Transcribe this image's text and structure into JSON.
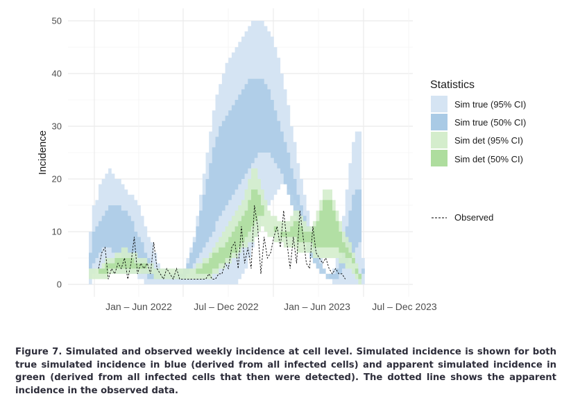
{
  "chart_data": {
    "type": "area",
    "xlabel": "",
    "ylabel": "Incidence",
    "ylim": [
      0,
      50
    ],
    "y_ticks": [
      0,
      10,
      20,
      30,
      40,
      50
    ],
    "x_tick_labels": [
      "Jan – Jun 2022",
      "Jul – Dec 2022",
      "Jan – Jun 2023",
      "Jul – Dec 2023"
    ],
    "x_unit": "week index from first plotted week (week 0 = mid Dec 2021)",
    "grid": true,
    "legend_position": "right",
    "legend_title": "Statistics",
    "colors": {
      "sim_true_95": "#d5e4f3",
      "sim_true_50": "#a9cae5",
      "sim_det_95": "#d4edcc",
      "sim_det_50": "#aedd9e",
      "observed": "#000000",
      "grid": "#ebebeb"
    },
    "series": [
      {
        "name": "Sim true (95% CI)",
        "lower": [
          0,
          2,
          3,
          3,
          4,
          3,
          3,
          2,
          2,
          2,
          2,
          2,
          2,
          2,
          2,
          1,
          1,
          0,
          0,
          0,
          0,
          0,
          0,
          0,
          0,
          0,
          0,
          0,
          0,
          0,
          0,
          0,
          0,
          0,
          0,
          0,
          0,
          0,
          0,
          0,
          0,
          0,
          0,
          0,
          0,
          0,
          1,
          2,
          3,
          5,
          7,
          9,
          11,
          13,
          14,
          15,
          16,
          17,
          18,
          19,
          19,
          18,
          17,
          16,
          15,
          14,
          12,
          10,
          8,
          6,
          5,
          4,
          3,
          2,
          1,
          0,
          0,
          0,
          0,
          0,
          0,
          0,
          0,
          0,
          0,
          0,
          0,
          0,
          0,
          0,
          0,
          0,
          0,
          0,
          0,
          0,
          0,
          0,
          0
        ],
        "upper": [
          10,
          15,
          16,
          19,
          20,
          21,
          22,
          21,
          20,
          20,
          19,
          18,
          17,
          17,
          16,
          15,
          13,
          11,
          9,
          8,
          6,
          4,
          3,
          3,
          2,
          2,
          2,
          3,
          3,
          3,
          5,
          7,
          9,
          13,
          17,
          21,
          25,
          29,
          33,
          36,
          38,
          40,
          42,
          43,
          44,
          45,
          46,
          47,
          48,
          49,
          50,
          50,
          50,
          50,
          49,
          48,
          47,
          45,
          43,
          40,
          37,
          34,
          30,
          27,
          23,
          20,
          17,
          14,
          11,
          9,
          7,
          5,
          3,
          2,
          2,
          3,
          5,
          9,
          13,
          18,
          23,
          27,
          29,
          29,
          5,
          0,
          0,
          0,
          0,
          0,
          0,
          0,
          0,
          0,
          0,
          0,
          0,
          0,
          0
        ]
      },
      {
        "name": "Sim true (50% CI)",
        "lower": [
          3,
          4,
          5,
          6,
          7,
          7,
          7,
          6,
          6,
          6,
          5,
          5,
          4,
          4,
          3,
          3,
          2,
          2,
          1,
          1,
          1,
          1,
          1,
          1,
          1,
          1,
          1,
          1,
          1,
          1,
          2,
          3,
          4,
          5,
          6,
          7,
          8,
          9,
          10,
          12,
          13,
          14,
          15,
          16,
          17,
          18,
          19,
          20,
          21,
          22,
          23,
          24,
          25,
          25,
          25,
          25,
          24,
          23,
          22,
          21,
          19,
          17,
          15,
          13,
          11,
          9,
          8,
          6,
          5,
          4,
          3,
          2,
          2,
          1,
          1,
          1,
          1,
          2,
          3,
          4,
          5,
          6,
          7,
          8,
          2,
          0,
          0,
          0,
          0,
          0,
          0,
          0,
          0,
          0,
          0,
          0,
          0,
          0,
          0
        ],
        "upper": [
          6,
          10,
          11,
          12,
          13,
          14,
          15,
          15,
          15,
          15,
          14,
          14,
          13,
          12,
          10,
          9,
          8,
          6,
          5,
          4,
          3,
          3,
          2,
          2,
          2,
          2,
          2,
          2,
          2,
          3,
          4,
          6,
          8,
          11,
          14,
          17,
          20,
          23,
          26,
          28,
          30,
          31,
          32,
          33,
          34,
          35,
          36,
          37,
          38,
          39,
          39,
          39,
          39,
          39,
          38,
          37,
          35,
          33,
          31,
          29,
          27,
          25,
          22,
          20,
          17,
          15,
          13,
          11,
          9,
          7,
          6,
          4,
          3,
          2,
          2,
          2,
          3,
          5,
          8,
          11,
          14,
          17,
          18,
          18,
          3,
          0,
          0,
          0,
          0,
          0,
          0,
          0,
          0,
          0,
          0,
          0,
          0,
          0,
          0
        ]
      },
      {
        "name": "Sim det (95% CI)",
        "lower": [
          1,
          1,
          1,
          1,
          1,
          1,
          2,
          2,
          2,
          2,
          2,
          2,
          2,
          2,
          2,
          2,
          2,
          2,
          2,
          2,
          1,
          1,
          1,
          1,
          1,
          1,
          1,
          1,
          1,
          1,
          1,
          1,
          1,
          1,
          1,
          1,
          1,
          1,
          2,
          2,
          3,
          3,
          4,
          4,
          5,
          5,
          6,
          7,
          7,
          8,
          8,
          9,
          10,
          11,
          10,
          9,
          9,
          8,
          8,
          8,
          7,
          7,
          7,
          7,
          6,
          6,
          6,
          6,
          6,
          5,
          5,
          5,
          5,
          5,
          5,
          5,
          5,
          4,
          4,
          3,
          3,
          2,
          1,
          0,
          0,
          0,
          0,
          0,
          0,
          0,
          0,
          0,
          0,
          0,
          0,
          0,
          0,
          0,
          0
        ],
        "upper": [
          3,
          3,
          3,
          3,
          4,
          5,
          5,
          5,
          6,
          6,
          7,
          7,
          6,
          6,
          6,
          5,
          5,
          5,
          4,
          4,
          3,
          3,
          3,
          3,
          3,
          3,
          3,
          3,
          3,
          3,
          3,
          3,
          3,
          4,
          4,
          5,
          5,
          6,
          7,
          8,
          9,
          10,
          11,
          12,
          13,
          14,
          15,
          16,
          18,
          20,
          22,
          22,
          20,
          18,
          16,
          14,
          13,
          13,
          12,
          12,
          12,
          12,
          13,
          14,
          14,
          13,
          12,
          11,
          11,
          12,
          14,
          16,
          18,
          18,
          18,
          16,
          14,
          12,
          10,
          9,
          8,
          6,
          4,
          2,
          0,
          0,
          0,
          0,
          0,
          0,
          0,
          0,
          0,
          0,
          0,
          0,
          0,
          0,
          0
        ]
      },
      {
        "name": "Sim det (50% CI)",
        "lower": [
          2,
          2,
          2,
          2,
          2,
          2,
          3,
          3,
          3,
          3,
          3,
          3,
          3,
          3,
          3,
          3,
          3,
          3,
          3,
          3,
          2,
          2,
          2,
          2,
          2,
          2,
          2,
          2,
          2,
          2,
          2,
          2,
          2,
          2,
          2,
          2,
          2,
          2,
          3,
          3,
          4,
          4,
          5,
          5,
          6,
          6,
          7,
          8,
          9,
          10,
          11,
          12,
          13,
          13,
          13,
          12,
          11,
          10,
          10,
          9,
          9,
          9,
          9,
          9,
          8,
          8,
          8,
          8,
          8,
          7,
          7,
          7,
          7,
          7,
          7,
          7,
          7,
          6,
          6,
          5,
          5,
          4,
          2,
          1,
          0,
          0,
          0,
          0,
          0,
          0,
          0,
          0,
          0,
          0,
          0,
          0,
          0,
          0,
          0
        ],
        "upper": [
          2,
          2,
          2,
          3,
          3,
          4,
          4,
          4,
          5,
          5,
          5,
          5,
          5,
          5,
          4,
          4,
          4,
          4,
          3,
          3,
          2,
          2,
          2,
          2,
          2,
          2,
          2,
          2,
          2,
          2,
          2,
          2,
          2,
          3,
          3,
          4,
          4,
          5,
          6,
          6,
          7,
          7,
          8,
          9,
          10,
          11,
          12,
          13,
          14,
          16,
          18,
          18,
          17,
          15,
          13,
          12,
          11,
          11,
          10,
          10,
          10,
          10,
          11,
          12,
          12,
          11,
          10,
          10,
          10,
          11,
          12,
          14,
          16,
          16,
          16,
          14,
          12,
          10,
          8,
          7,
          6,
          5,
          3,
          2,
          0,
          0,
          0,
          0,
          0,
          0,
          0,
          0,
          0,
          0,
          0,
          0,
          0,
          0,
          0
        ]
      },
      {
        "name": "Observed",
        "values": [
          3,
          6,
          7,
          1,
          3,
          2,
          4,
          3,
          5,
          1,
          4,
          9,
          2,
          4,
          3,
          4,
          2,
          8,
          3,
          2,
          1,
          3,
          2,
          1,
          3,
          1,
          1,
          1,
          1,
          1,
          1,
          1,
          1,
          1,
          2,
          1,
          1,
          2,
          2,
          4,
          3,
          7,
          8,
          3,
          11,
          4,
          7,
          3,
          15,
          11,
          2,
          9,
          5,
          6,
          9,
          11,
          7,
          14,
          8,
          3,
          9,
          4,
          14,
          9,
          4,
          3,
          11,
          6,
          5,
          4,
          5,
          3,
          2,
          3,
          2,
          2,
          1
        ],
        "x_start": 3
      }
    ]
  },
  "legend": {
    "title": "Statistics",
    "items": [
      "Sim true (95% CI)",
      "Sim true (50% CI)",
      "Sim det (95% CI)",
      "Sim det (50% CI)"
    ],
    "observed_label": "Observed"
  },
  "caption": "Figure 7. Simulated and observed weekly incidence at cell level. Simulated incidence is shown for both true simulated incidence in blue (derived from all infected cells) and apparent simulated incidence in green (derived from all infected cells that then were detected). The dotted line shows the apparent incidence in the observed data."
}
